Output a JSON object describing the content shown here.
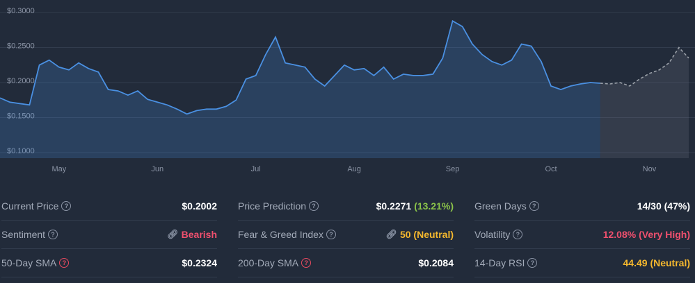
{
  "chart_data": {
    "type": "line",
    "categories": [
      null,
      null,
      null,
      null,
      null,
      null,
      "May",
      null,
      null,
      null,
      null,
      null,
      null,
      null,
      null,
      null,
      "Jun",
      null,
      null,
      null,
      null,
      null,
      null,
      null,
      null,
      null,
      "Jul",
      null,
      null,
      null,
      null,
      null,
      null,
      null,
      null,
      null,
      "Aug",
      null,
      null,
      null,
      null,
      null,
      null,
      null,
      null,
      null,
      "Sep",
      null,
      null,
      null,
      null,
      null,
      null,
      null,
      null,
      null,
      "Oct",
      null,
      null,
      null,
      null,
      null,
      null,
      null,
      null,
      null,
      "Nov",
      null,
      null,
      null,
      null
    ],
    "series": [
      {
        "color": "#4a90e2",
        "style": "solid",
        "values": [
          0.178,
          0.172,
          0.17,
          0.168,
          0.225,
          0.232,
          0.222,
          0.218,
          0.228,
          0.22,
          0.215,
          0.19,
          0.188,
          0.182,
          0.188,
          0.176,
          0.172,
          0.168,
          0.162,
          0.155,
          0.16,
          0.162,
          0.162,
          0.166,
          0.175,
          0.205,
          0.21,
          0.24,
          0.265,
          0.228,
          0.225,
          0.222,
          0.205,
          0.195,
          0.21,
          0.225,
          0.218,
          0.22,
          0.21,
          0.222,
          0.205,
          0.212,
          0.21,
          0.21,
          0.212,
          0.235,
          0.288,
          0.28,
          0.255,
          0.24,
          0.23,
          0.225,
          0.232,
          0.255,
          0.252,
          0.23,
          0.195,
          0.19,
          0.195,
          0.198,
          0.2,
          0.199,
          null,
          null,
          null,
          null,
          null,
          null,
          null,
          null,
          null
        ]
      },
      {
        "color": "#9aa0a8",
        "style": "dashed",
        "values": [
          null,
          null,
          null,
          null,
          null,
          null,
          null,
          null,
          null,
          null,
          null,
          null,
          null,
          null,
          null,
          null,
          null,
          null,
          null,
          null,
          null,
          null,
          null,
          null,
          null,
          null,
          null,
          null,
          null,
          null,
          null,
          null,
          null,
          null,
          null,
          null,
          null,
          null,
          null,
          null,
          null,
          null,
          null,
          null,
          null,
          null,
          null,
          null,
          null,
          null,
          null,
          null,
          null,
          null,
          null,
          null,
          null,
          null,
          null,
          null,
          null,
          0.199,
          0.198,
          0.2,
          0.195,
          0.205,
          0.213,
          0.218,
          0.228,
          0.25,
          0.235
        ]
      }
    ],
    "ylim": [
      0.09,
      0.31
    ],
    "yticks": [
      {
        "value": 0.1,
        "label": "$0.1000"
      },
      {
        "value": 0.15,
        "label": "$0.1500"
      },
      {
        "value": 0.2,
        "label": "$0.2000"
      },
      {
        "value": 0.25,
        "label": "$0.2500"
      },
      {
        "value": 0.3,
        "label": "$0.3000"
      }
    ],
    "grid": true
  },
  "stats": [
    [
      {
        "label": "Current Price",
        "value": "$0.2002"
      },
      {
        "label": "Price Prediction",
        "value": "$0.2271",
        "change": "(13.21%)"
      },
      {
        "label": "Green Days",
        "value": "14/30 (47%)"
      }
    ],
    [
      {
        "label": "Sentiment",
        "value": "Bearish"
      },
      {
        "label": "Fear & Greed Index",
        "value": "50 (Neutral)"
      },
      {
        "label": "Volatility",
        "value": "12.08% (Very High)"
      }
    ],
    [
      {
        "label": "50-Day SMA",
        "value": "$0.2324"
      },
      {
        "label": "200-Day SMA",
        "value": "$0.2084"
      },
      {
        "label": "14-Day RSI",
        "value": "44.49 (Neutral)"
      }
    ]
  ]
}
